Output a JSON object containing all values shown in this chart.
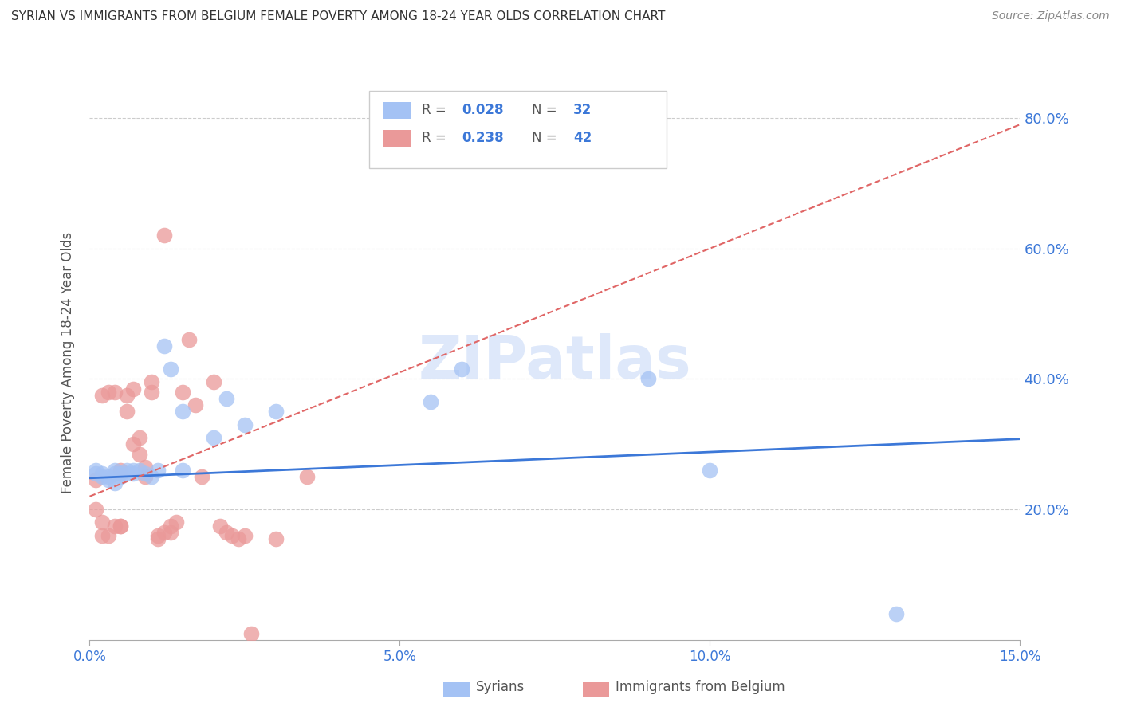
{
  "title": "SYRIAN VS IMMIGRANTS FROM BELGIUM FEMALE POVERTY AMONG 18-24 YEAR OLDS CORRELATION CHART",
  "source": "Source: ZipAtlas.com",
  "ylabel": "Female Poverty Among 18-24 Year Olds",
  "xlabel_syrians": "Syrians",
  "xlabel_belgium": "Immigrants from Belgium",
  "xlim": [
    0.0,
    0.15
  ],
  "ylim": [
    0.0,
    0.85
  ],
  "yticks": [
    0.2,
    0.4,
    0.6,
    0.8
  ],
  "xticks": [
    0.0,
    0.05,
    0.1,
    0.15
  ],
  "legend_syrian_r": "0.028",
  "legend_syrian_n": "32",
  "legend_belgium_r": "0.238",
  "legend_belgium_n": "42",
  "syrian_color": "#a4c2f4",
  "belgium_color": "#ea9999",
  "syrian_line_color": "#3c78d8",
  "belgium_line_color": "#e06666",
  "right_axis_color": "#3c78d8",
  "watermark": "ZIPatlas",
  "syrians_x": [
    0.001,
    0.001,
    0.002,
    0.002,
    0.003,
    0.003,
    0.004,
    0.004,
    0.004,
    0.005,
    0.005,
    0.006,
    0.006,
    0.007,
    0.007,
    0.008,
    0.009,
    0.01,
    0.011,
    0.012,
    0.013,
    0.015,
    0.015,
    0.02,
    0.022,
    0.025,
    0.03,
    0.055,
    0.06,
    0.09,
    0.1,
    0.13
  ],
  "syrians_y": [
    0.255,
    0.26,
    0.25,
    0.255,
    0.25,
    0.245,
    0.255,
    0.26,
    0.24,
    0.25,
    0.255,
    0.26,
    0.255,
    0.255,
    0.26,
    0.26,
    0.255,
    0.25,
    0.26,
    0.45,
    0.415,
    0.35,
    0.26,
    0.31,
    0.37,
    0.33,
    0.35,
    0.365,
    0.415,
    0.4,
    0.26,
    0.04
  ],
  "belgium_x": [
    0.001,
    0.001,
    0.002,
    0.002,
    0.002,
    0.003,
    0.003,
    0.004,
    0.004,
    0.005,
    0.005,
    0.005,
    0.006,
    0.006,
    0.007,
    0.007,
    0.008,
    0.008,
    0.009,
    0.009,
    0.01,
    0.01,
    0.011,
    0.011,
    0.012,
    0.012,
    0.013,
    0.013,
    0.014,
    0.015,
    0.016,
    0.017,
    0.018,
    0.02,
    0.021,
    0.022,
    0.023,
    0.024,
    0.025,
    0.026,
    0.03,
    0.035
  ],
  "belgium_y": [
    0.245,
    0.2,
    0.16,
    0.18,
    0.375,
    0.16,
    0.38,
    0.175,
    0.38,
    0.175,
    0.26,
    0.175,
    0.35,
    0.375,
    0.385,
    0.3,
    0.285,
    0.31,
    0.25,
    0.265,
    0.38,
    0.395,
    0.155,
    0.16,
    0.165,
    0.62,
    0.165,
    0.175,
    0.18,
    0.38,
    0.46,
    0.36,
    0.25,
    0.395,
    0.175,
    0.165,
    0.16,
    0.155,
    0.16,
    0.01,
    0.155,
    0.25
  ],
  "syrian_slope": 0.4,
  "syrian_intercept": 0.248,
  "belgium_slope": 3.8,
  "belgium_intercept": 0.22
}
